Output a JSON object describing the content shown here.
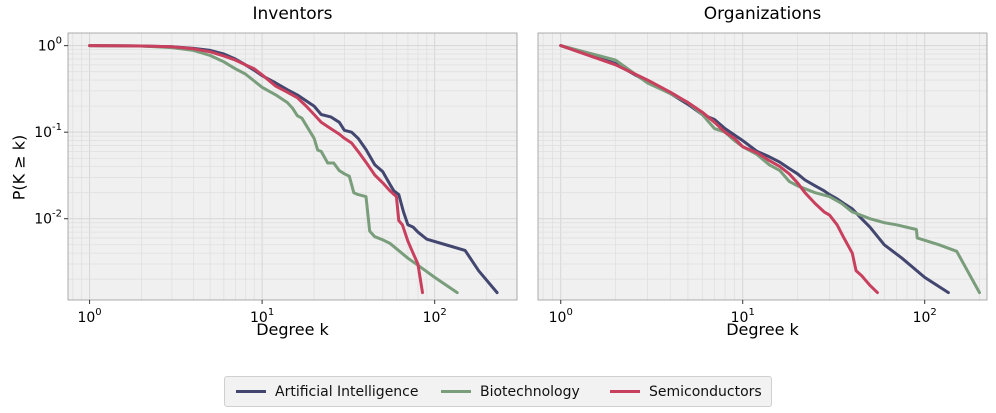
{
  "colors": {
    "ai": "#43476f",
    "bio": "#7a9d7c",
    "semi": "#c8405e"
  },
  "labels": {
    "ylabel": "P(K ≥ k)"
  },
  "legend": {
    "ai": "Artificial Intelligence",
    "bio": "Biotechnology",
    "semi": "Semiconductors"
  },
  "chart_data": [
    {
      "type": "line",
      "title": "Inventors",
      "xlabel": "Degree k",
      "ylabel": "P(K ≥ k)",
      "xscale": "log",
      "yscale": "log",
      "xlim": [
        0.75,
        300
      ],
      "ylim": [
        0.00115,
        1.4
      ],
      "xticks": [
        "10^0",
        "10^1",
        "10^2"
      ],
      "yticks": [
        "10^-2",
        "10^-1",
        "10^0"
      ],
      "grid": true,
      "series": [
        {
          "name": "Artificial Intelligence",
          "x": [
            1,
            2,
            3,
            4,
            5,
            6,
            7,
            8,
            9,
            10,
            12,
            14,
            16,
            18,
            20,
            22,
            25,
            28,
            30,
            33,
            36,
            40,
            45,
            50,
            55,
            58,
            62,
            66,
            70,
            75,
            80,
            90,
            120,
            150,
            180,
            230
          ],
          "y": [
            1.0,
            0.99,
            0.97,
            0.93,
            0.88,
            0.8,
            0.7,
            0.6,
            0.52,
            0.45,
            0.37,
            0.31,
            0.27,
            0.23,
            0.2,
            0.16,
            0.15,
            0.13,
            0.105,
            0.1,
            0.085,
            0.063,
            0.042,
            0.035,
            0.025,
            0.021,
            0.019,
            0.012,
            0.0085,
            0.008,
            0.007,
            0.0058,
            0.0049,
            0.0043,
            0.0025,
            0.0014
          ]
        },
        {
          "name": "Biotechnology",
          "x": [
            1,
            2,
            3,
            4,
            5,
            6,
            7,
            8,
            9,
            10,
            12,
            14,
            15,
            16,
            17,
            18,
            20,
            21,
            22,
            24,
            26,
            28,
            30,
            32,
            34,
            36,
            40,
            42,
            45,
            50,
            55,
            60,
            70,
            80,
            100,
            135
          ],
          "y": [
            1.0,
            0.99,
            0.95,
            0.88,
            0.77,
            0.65,
            0.54,
            0.47,
            0.39,
            0.33,
            0.27,
            0.22,
            0.19,
            0.155,
            0.145,
            0.12,
            0.085,
            0.062,
            0.06,
            0.044,
            0.044,
            0.036,
            0.033,
            0.031,
            0.02,
            0.019,
            0.018,
            0.0072,
            0.0062,
            0.0057,
            0.0052,
            0.0045,
            0.0035,
            0.0029,
            0.0021,
            0.0014
          ]
        },
        {
          "name": "Semiconductors",
          "x": [
            1,
            2,
            3,
            4,
            5,
            6,
            7,
            8,
            9,
            10,
            12,
            14,
            16,
            18,
            20,
            22,
            25,
            28,
            30,
            33,
            36,
            40,
            45,
            50,
            55,
            60,
            62,
            65,
            70,
            75,
            80,
            85
          ],
          "y": [
            1.0,
            0.99,
            0.97,
            0.92,
            0.85,
            0.76,
            0.68,
            0.6,
            0.54,
            0.46,
            0.34,
            0.29,
            0.25,
            0.2,
            0.16,
            0.13,
            0.11,
            0.095,
            0.085,
            0.075,
            0.06,
            0.045,
            0.032,
            0.026,
            0.021,
            0.018,
            0.0095,
            0.0085,
            0.0055,
            0.004,
            0.003,
            0.0014
          ]
        }
      ]
    },
    {
      "type": "line",
      "title": "Organizations",
      "xlabel": "Degree k",
      "ylabel": "",
      "xscale": "log",
      "yscale": "log",
      "xlim": [
        0.75,
        220
      ],
      "ylim": [
        0.00115,
        1.4
      ],
      "xticks": [
        "10^0",
        "10^1",
        "10^2"
      ],
      "yticks": [],
      "grid": true,
      "series": [
        {
          "name": "Artificial Intelligence",
          "x": [
            1,
            2,
            3,
            4,
            5,
            6,
            7,
            8,
            10,
            12,
            14,
            16,
            18,
            20,
            22,
            25,
            28,
            30,
            33,
            36,
            40,
            45,
            50,
            60,
            75,
            100,
            135
          ],
          "y": [
            1.0,
            0.62,
            0.38,
            0.28,
            0.21,
            0.16,
            0.14,
            0.11,
            0.08,
            0.06,
            0.052,
            0.045,
            0.038,
            0.033,
            0.028,
            0.024,
            0.021,
            0.019,
            0.017,
            0.015,
            0.013,
            0.01,
            0.008,
            0.005,
            0.0035,
            0.0021,
            0.0014
          ]
        },
        {
          "name": "Biotechnology",
          "x": [
            1,
            2,
            3,
            4,
            5,
            6,
            7,
            8,
            9,
            10,
            12,
            14,
            16,
            18,
            20,
            25,
            30,
            35,
            40,
            50,
            60,
            70,
            90,
            91,
            120,
            150,
            200
          ],
          "y": [
            1.0,
            0.68,
            0.37,
            0.28,
            0.22,
            0.16,
            0.11,
            0.1,
            0.08,
            0.068,
            0.055,
            0.042,
            0.036,
            0.027,
            0.024,
            0.02,
            0.018,
            0.015,
            0.012,
            0.01,
            0.009,
            0.0085,
            0.0075,
            0.006,
            0.005,
            0.0042,
            0.0014
          ]
        },
        {
          "name": "Semiconductors",
          "x": [
            1,
            2,
            3,
            4,
            5,
            6,
            7,
            8,
            9,
            10,
            12,
            14,
            16,
            18,
            20,
            22,
            25,
            28,
            30,
            33,
            36,
            40,
            42,
            45,
            50,
            55
          ],
          "y": [
            1.0,
            0.6,
            0.4,
            0.29,
            0.22,
            0.17,
            0.13,
            0.1,
            0.085,
            0.068,
            0.058,
            0.047,
            0.04,
            0.033,
            0.026,
            0.02,
            0.015,
            0.012,
            0.011,
            0.0085,
            0.006,
            0.004,
            0.0025,
            0.0022,
            0.0017,
            0.0014
          ]
        }
      ]
    }
  ]
}
